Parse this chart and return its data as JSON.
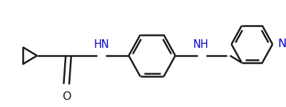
{
  "bg_color": "#ffffff",
  "line_color": "#1a1a1a",
  "N_color": "#0000cd",
  "O_color": "#1a1a1a",
  "line_width": 1.8,
  "font_size": 10.5,
  "fig_width": 4.01,
  "fig_height": 1.5,
  "dpi": 100,
  "xlim": [
    0,
    401
  ],
  "ylim": [
    0,
    150
  ]
}
